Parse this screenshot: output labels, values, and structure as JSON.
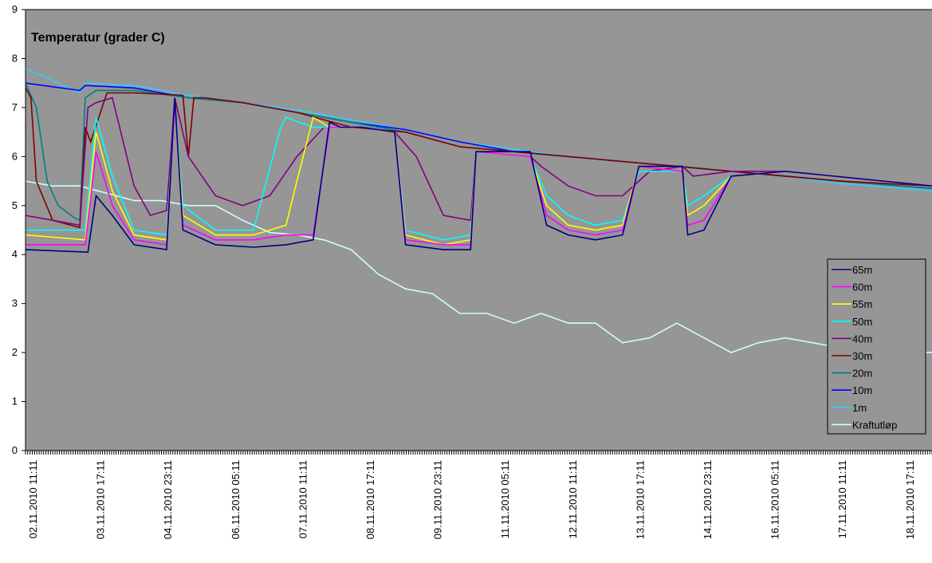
{
  "chart_data": {
    "type": "line",
    "title": "Temperatur (grader C)",
    "xlabel": "",
    "ylabel": "",
    "ylim": [
      0,
      9
    ],
    "yticks": [
      "0",
      "1",
      "2",
      "3",
      "4",
      "5",
      "6",
      "7",
      "8",
      "9"
    ],
    "xticks": [
      "02.11.2010 11:11",
      "03.11.2010 17:11",
      "04.11.2010 23:11",
      "06.11.2010 05:11",
      "07.11.2010 11:11",
      "08.11.2010 17:11",
      "09.11.2010 23:11",
      "11.11.2010 05:11",
      "12.11.2010 11:11",
      "13.11.2010 17:11",
      "14.11.2010 23:11",
      "16.11.2010 05:11",
      "17.11.2010 11:11",
      "18.11.2010 17:11"
    ],
    "x_start": "02.11.2010 11:11",
    "x_end": "19.11.2010 02:00",
    "grid": false,
    "background": "#969696",
    "legend_position": "right",
    "series": [
      {
        "name": "65m",
        "color": "#000080",
        "x": [
          0,
          1.15,
          1.3,
          1.6,
          2.0,
          2.6,
          2.75,
          2.9,
          3.5,
          4.2,
          4.8,
          5.3,
          5.6,
          5.8,
          6.2,
          6.8,
          7.0,
          7.7,
          8.2,
          8.3,
          9.3,
          9.6,
          10.0,
          10.5,
          11.0,
          11.3,
          12.1,
          12.2,
          12.5,
          13.0,
          14.0,
          16.7
        ],
        "y": [
          4.1,
          4.05,
          5.2,
          4.8,
          4.2,
          4.1,
          7.2,
          4.5,
          4.2,
          4.15,
          4.2,
          4.3,
          6.7,
          6.6,
          6.6,
          6.5,
          4.2,
          4.1,
          4.1,
          6.1,
          6.1,
          4.6,
          4.4,
          4.3,
          4.4,
          5.8,
          5.8,
          4.4,
          4.5,
          5.6,
          5.7,
          5.4
        ]
      },
      {
        "name": "60m",
        "color": "#ff00ff",
        "x": [
          0,
          1.1,
          1.3,
          1.6,
          2.0,
          2.6,
          2.75,
          2.9,
          3.5,
          4.2,
          4.8,
          5.3,
          5.6,
          5.8,
          6.2,
          6.8,
          7.0,
          7.7,
          8.2,
          8.3,
          9.3,
          9.6,
          10.0,
          10.5,
          11.0,
          11.3,
          12.1,
          12.2,
          12.5,
          13.0,
          14.0,
          16.7
        ],
        "y": [
          4.2,
          4.2,
          6.1,
          5.0,
          4.3,
          4.2,
          7.1,
          4.6,
          4.3,
          4.3,
          4.4,
          4.4,
          6.6,
          6.6,
          6.6,
          6.5,
          4.3,
          4.2,
          4.2,
          6.1,
          6.0,
          4.8,
          4.5,
          4.4,
          4.5,
          5.8,
          5.7,
          4.6,
          4.7,
          5.6,
          5.7,
          5.4
        ]
      },
      {
        "name": "55m",
        "color": "#ffff00",
        "x": [
          0,
          1.1,
          1.3,
          1.6,
          2.0,
          2.6,
          2.75,
          2.9,
          3.5,
          4.2,
          4.8,
          5.0,
          5.3,
          5.6,
          5.8,
          6.2,
          6.8,
          7.0,
          7.7,
          8.2,
          8.3,
          9.3,
          9.6,
          10.0,
          10.5,
          11.0,
          11.3,
          12.1,
          12.2,
          12.5,
          13.0,
          14.0,
          16.7
        ],
        "y": [
          4.4,
          4.3,
          6.5,
          5.3,
          4.4,
          4.3,
          7.1,
          4.8,
          4.4,
          4.4,
          4.6,
          5.5,
          6.8,
          6.6,
          6.6,
          6.6,
          6.5,
          4.4,
          4.2,
          4.3,
          6.1,
          6.0,
          5.0,
          4.6,
          4.5,
          4.6,
          5.8,
          5.7,
          4.8,
          5.0,
          5.6,
          5.7,
          5.4
        ]
      },
      {
        "name": "50m",
        "color": "#00ffff",
        "x": [
          0,
          1.1,
          1.3,
          1.6,
          2.0,
          2.6,
          2.75,
          2.9,
          3.5,
          4.2,
          4.7,
          4.8,
          5.3,
          5.6,
          5.8,
          6.2,
          6.8,
          7.0,
          7.7,
          8.2,
          8.3,
          9.3,
          9.6,
          10.0,
          10.5,
          11.0,
          11.3,
          12.1,
          12.2,
          12.5,
          13.0,
          14.0,
          16.7
        ],
        "y": [
          4.5,
          4.5,
          6.8,
          5.6,
          4.5,
          4.4,
          7.1,
          5.0,
          4.5,
          4.5,
          6.6,
          6.8,
          6.6,
          6.6,
          6.6,
          6.6,
          6.5,
          4.5,
          4.3,
          4.4,
          6.1,
          6.0,
          5.2,
          4.8,
          4.6,
          4.7,
          5.7,
          5.7,
          5.0,
          5.2,
          5.6,
          5.7,
          5.4
        ]
      },
      {
        "name": "40m",
        "color": "#800080",
        "x": [
          0,
          0.5,
          1.0,
          1.15,
          1.3,
          1.6,
          2.0,
          2.3,
          2.6,
          2.75,
          3.0,
          3.5,
          4.0,
          4.5,
          5.0,
          5.5,
          5.8,
          6.2,
          6.8,
          7.2,
          7.7,
          8.2,
          8.3,
          9.3,
          9.5,
          10.0,
          10.5,
          11.0,
          11.5,
          12.1,
          12.3,
          13.0,
          14.0,
          16.7
        ],
        "y": [
          4.8,
          4.7,
          4.6,
          7.0,
          7.1,
          7.2,
          5.4,
          4.8,
          4.9,
          7.2,
          6.0,
          5.2,
          5.0,
          5.2,
          6.0,
          6.6,
          6.6,
          6.6,
          6.5,
          6.0,
          4.8,
          4.7,
          6.1,
          6.0,
          5.8,
          5.4,
          5.2,
          5.2,
          5.7,
          5.8,
          5.6,
          5.7,
          5.7,
          5.4
        ]
      },
      {
        "name": "30m",
        "color": "#800000",
        "x": [
          0,
          0.1,
          0.2,
          0.5,
          1.0,
          1.1,
          1.2,
          1.5,
          2.0,
          2.9,
          3.0,
          3.1,
          3.3,
          4.0,
          5.0,
          6.0,
          7.0,
          8.0,
          9.0,
          10.0,
          11.0,
          12.0,
          13.0,
          14.0,
          15.0,
          16.7
        ],
        "y": [
          7.4,
          7.2,
          5.5,
          4.7,
          4.55,
          6.6,
          6.3,
          7.3,
          7.3,
          7.25,
          6.0,
          7.2,
          7.2,
          7.1,
          6.9,
          6.6,
          6.5,
          6.2,
          6.1,
          6.0,
          5.9,
          5.8,
          5.7,
          5.6,
          5.5,
          5.4
        ]
      },
      {
        "name": "20m",
        "color": "#008080",
        "x": [
          0,
          0.2,
          0.4,
          0.6,
          0.9,
          1.0,
          1.1,
          1.3,
          2.0,
          3.0,
          4.0,
          5.0,
          6.0,
          7.0,
          8.0,
          9.0,
          10.0,
          11.0,
          12.0,
          13.0,
          14.0,
          15.0,
          16.7
        ],
        "y": [
          7.5,
          7.0,
          5.5,
          5.0,
          4.75,
          4.7,
          7.2,
          7.35,
          7.35,
          7.2,
          7.1,
          6.9,
          6.7,
          6.5,
          6.2,
          6.1,
          6.0,
          5.9,
          5.8,
          5.7,
          5.6,
          5.5,
          5.35
        ]
      },
      {
        "name": "10m",
        "color": "#0000ff",
        "x": [
          0,
          1.0,
          1.1,
          2.0,
          3.0,
          4.0,
          5.0,
          6.0,
          7.0,
          8.0,
          9.0,
          10.0,
          11.0,
          12.0,
          13.0,
          14.0,
          15.0,
          16.7
        ],
        "y": [
          7.5,
          7.35,
          7.45,
          7.4,
          7.2,
          7.1,
          6.9,
          6.7,
          6.55,
          6.3,
          6.1,
          6.0,
          5.9,
          5.8,
          5.7,
          5.6,
          5.5,
          5.35
        ]
      },
      {
        "name": "1m",
        "color": "#33ccff",
        "x": [
          0,
          1.0,
          1.1,
          2.0,
          3.0,
          4.0,
          5.0,
          6.0,
          7.0,
          8.0,
          9.0,
          10.0,
          11.0,
          12.0,
          13.0,
          14.0,
          15.0,
          16.7
        ],
        "y": [
          7.8,
          7.3,
          7.5,
          7.45,
          7.25,
          7.1,
          6.95,
          6.75,
          6.55,
          6.3,
          6.15,
          6.0,
          5.9,
          5.8,
          5.7,
          5.6,
          5.45,
          5.3
        ]
      },
      {
        "name": "Kraftutløp",
        "color": "#ccffff",
        "x": [
          0,
          0.5,
          1.0,
          1.5,
          2.0,
          2.5,
          3.0,
          3.5,
          4.0,
          4.5,
          5.0,
          5.5,
          6.0,
          6.5,
          7.0,
          7.5,
          8.0,
          8.5,
          9.0,
          9.5,
          10.0,
          10.5,
          11.0,
          11.5,
          12.0,
          12.5,
          13.0,
          13.5,
          14.0,
          14.5,
          15.0,
          15.5,
          16.0,
          16.3,
          16.7
        ],
        "y": [
          5.5,
          5.4,
          5.4,
          5.25,
          5.1,
          5.1,
          5.0,
          5.0,
          4.7,
          4.45,
          4.4,
          4.3,
          4.1,
          3.6,
          3.3,
          3.2,
          2.8,
          2.8,
          2.6,
          2.8,
          2.6,
          2.6,
          2.2,
          2.3,
          2.6,
          2.3,
          2.0,
          2.2,
          2.3,
          2.2,
          2.1,
          2.0,
          1.8,
          2.0,
          2.0
        ]
      }
    ]
  }
}
